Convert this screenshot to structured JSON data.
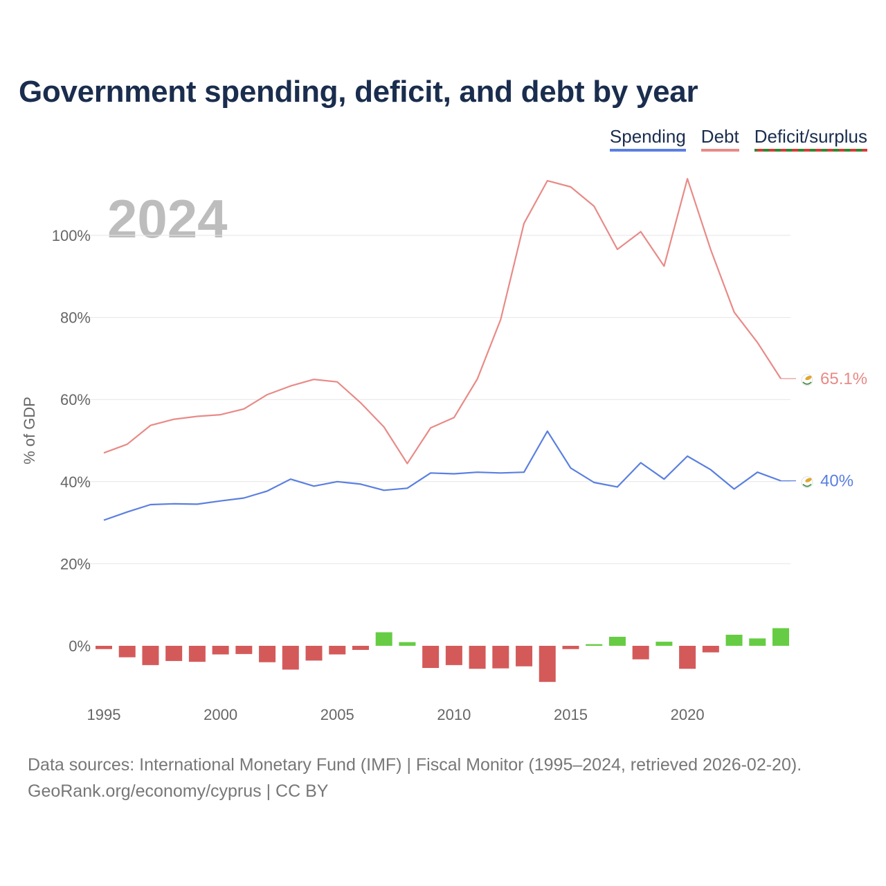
{
  "header": {
    "title": "Government spending, deficit, and debt by year"
  },
  "legend": {
    "spending": "Spending",
    "debt": "Debt",
    "deficit": "Deficit/surplus"
  },
  "colors": {
    "title": "#1a2d4e",
    "spending": "#5a7fe0",
    "debt": "#e88a87",
    "deficit_negative": "#d45a5a",
    "surplus_positive": "#66cc44",
    "grid": "#e6e6e6",
    "axis_text": "#666666",
    "year_watermark": "#bdbdbd"
  },
  "chart_data": {
    "type": "line",
    "title": "Government spending, deficit, and debt by year",
    "current_year_label": "2024",
    "ylabel": "% of GDP",
    "xlabel": "",
    "ylim": [
      -12,
      118
    ],
    "yticks": [
      0,
      20,
      40,
      60,
      80,
      100
    ],
    "ytick_labels": [
      "0%",
      "20%",
      "40%",
      "60%",
      "80%",
      "100%"
    ],
    "xlim": [
      1995,
      2024
    ],
    "xticks": [
      1995,
      2000,
      2005,
      2010,
      2015,
      2020
    ],
    "xtick_labels": [
      "1995",
      "2000",
      "2005",
      "2010",
      "2015",
      "2020"
    ],
    "grid": true,
    "legend_position": "top-right",
    "years": [
      1995,
      1996,
      1997,
      1998,
      1999,
      2000,
      2001,
      2002,
      2003,
      2004,
      2005,
      2006,
      2007,
      2008,
      2009,
      2010,
      2011,
      2012,
      2013,
      2014,
      2015,
      2016,
      2017,
      2018,
      2019,
      2020,
      2021,
      2022,
      2023,
      2024
    ],
    "series": [
      {
        "name": "Spending",
        "type": "line",
        "values": [
          30.6,
          32.6,
          34.4,
          34.6,
          34.5,
          35.3,
          36.0,
          37.7,
          40.6,
          38.9,
          40.0,
          39.4,
          37.9,
          38.4,
          42.1,
          41.9,
          42.3,
          42.1,
          42.3,
          52.3,
          43.3,
          39.8,
          38.7,
          44.6,
          40.6,
          46.2,
          42.9,
          38.2,
          42.3,
          40.2
        ],
        "end_label": "40%"
      },
      {
        "name": "Debt",
        "type": "line",
        "values": [
          47.0,
          49.1,
          53.7,
          55.2,
          55.9,
          56.3,
          57.7,
          61.2,
          63.3,
          64.9,
          64.3,
          59.2,
          53.3,
          44.4,
          53.1,
          55.6,
          65.0,
          79.5,
          102.9,
          113.3,
          111.8,
          107.1,
          96.6,
          100.9,
          92.5,
          113.8,
          96.5,
          81.3,
          73.9,
          65.1
        ],
        "end_label": "65.1%"
      },
      {
        "name": "Deficit/surplus",
        "type": "bar",
        "values": [
          -0.8,
          -2.8,
          -4.7,
          -3.7,
          -3.9,
          -2.1,
          -2.0,
          -4.0,
          -5.8,
          -3.6,
          -2.1,
          -1.0,
          3.3,
          0.9,
          -5.4,
          -4.7,
          -5.6,
          -5.5,
          -5.0,
          -8.8,
          -0.8,
          0.4,
          2.2,
          -3.3,
          1.0,
          -5.6,
          -1.6,
          2.7,
          1.8,
          4.3
        ]
      }
    ]
  },
  "source": {
    "line1": "Data sources: International Monetary Fund (IMF) | Fiscal Monitor (1995–2024, retrieved 2026-02-20).",
    "line2": "GeoRank.org/economy/cyprus | CC BY"
  }
}
